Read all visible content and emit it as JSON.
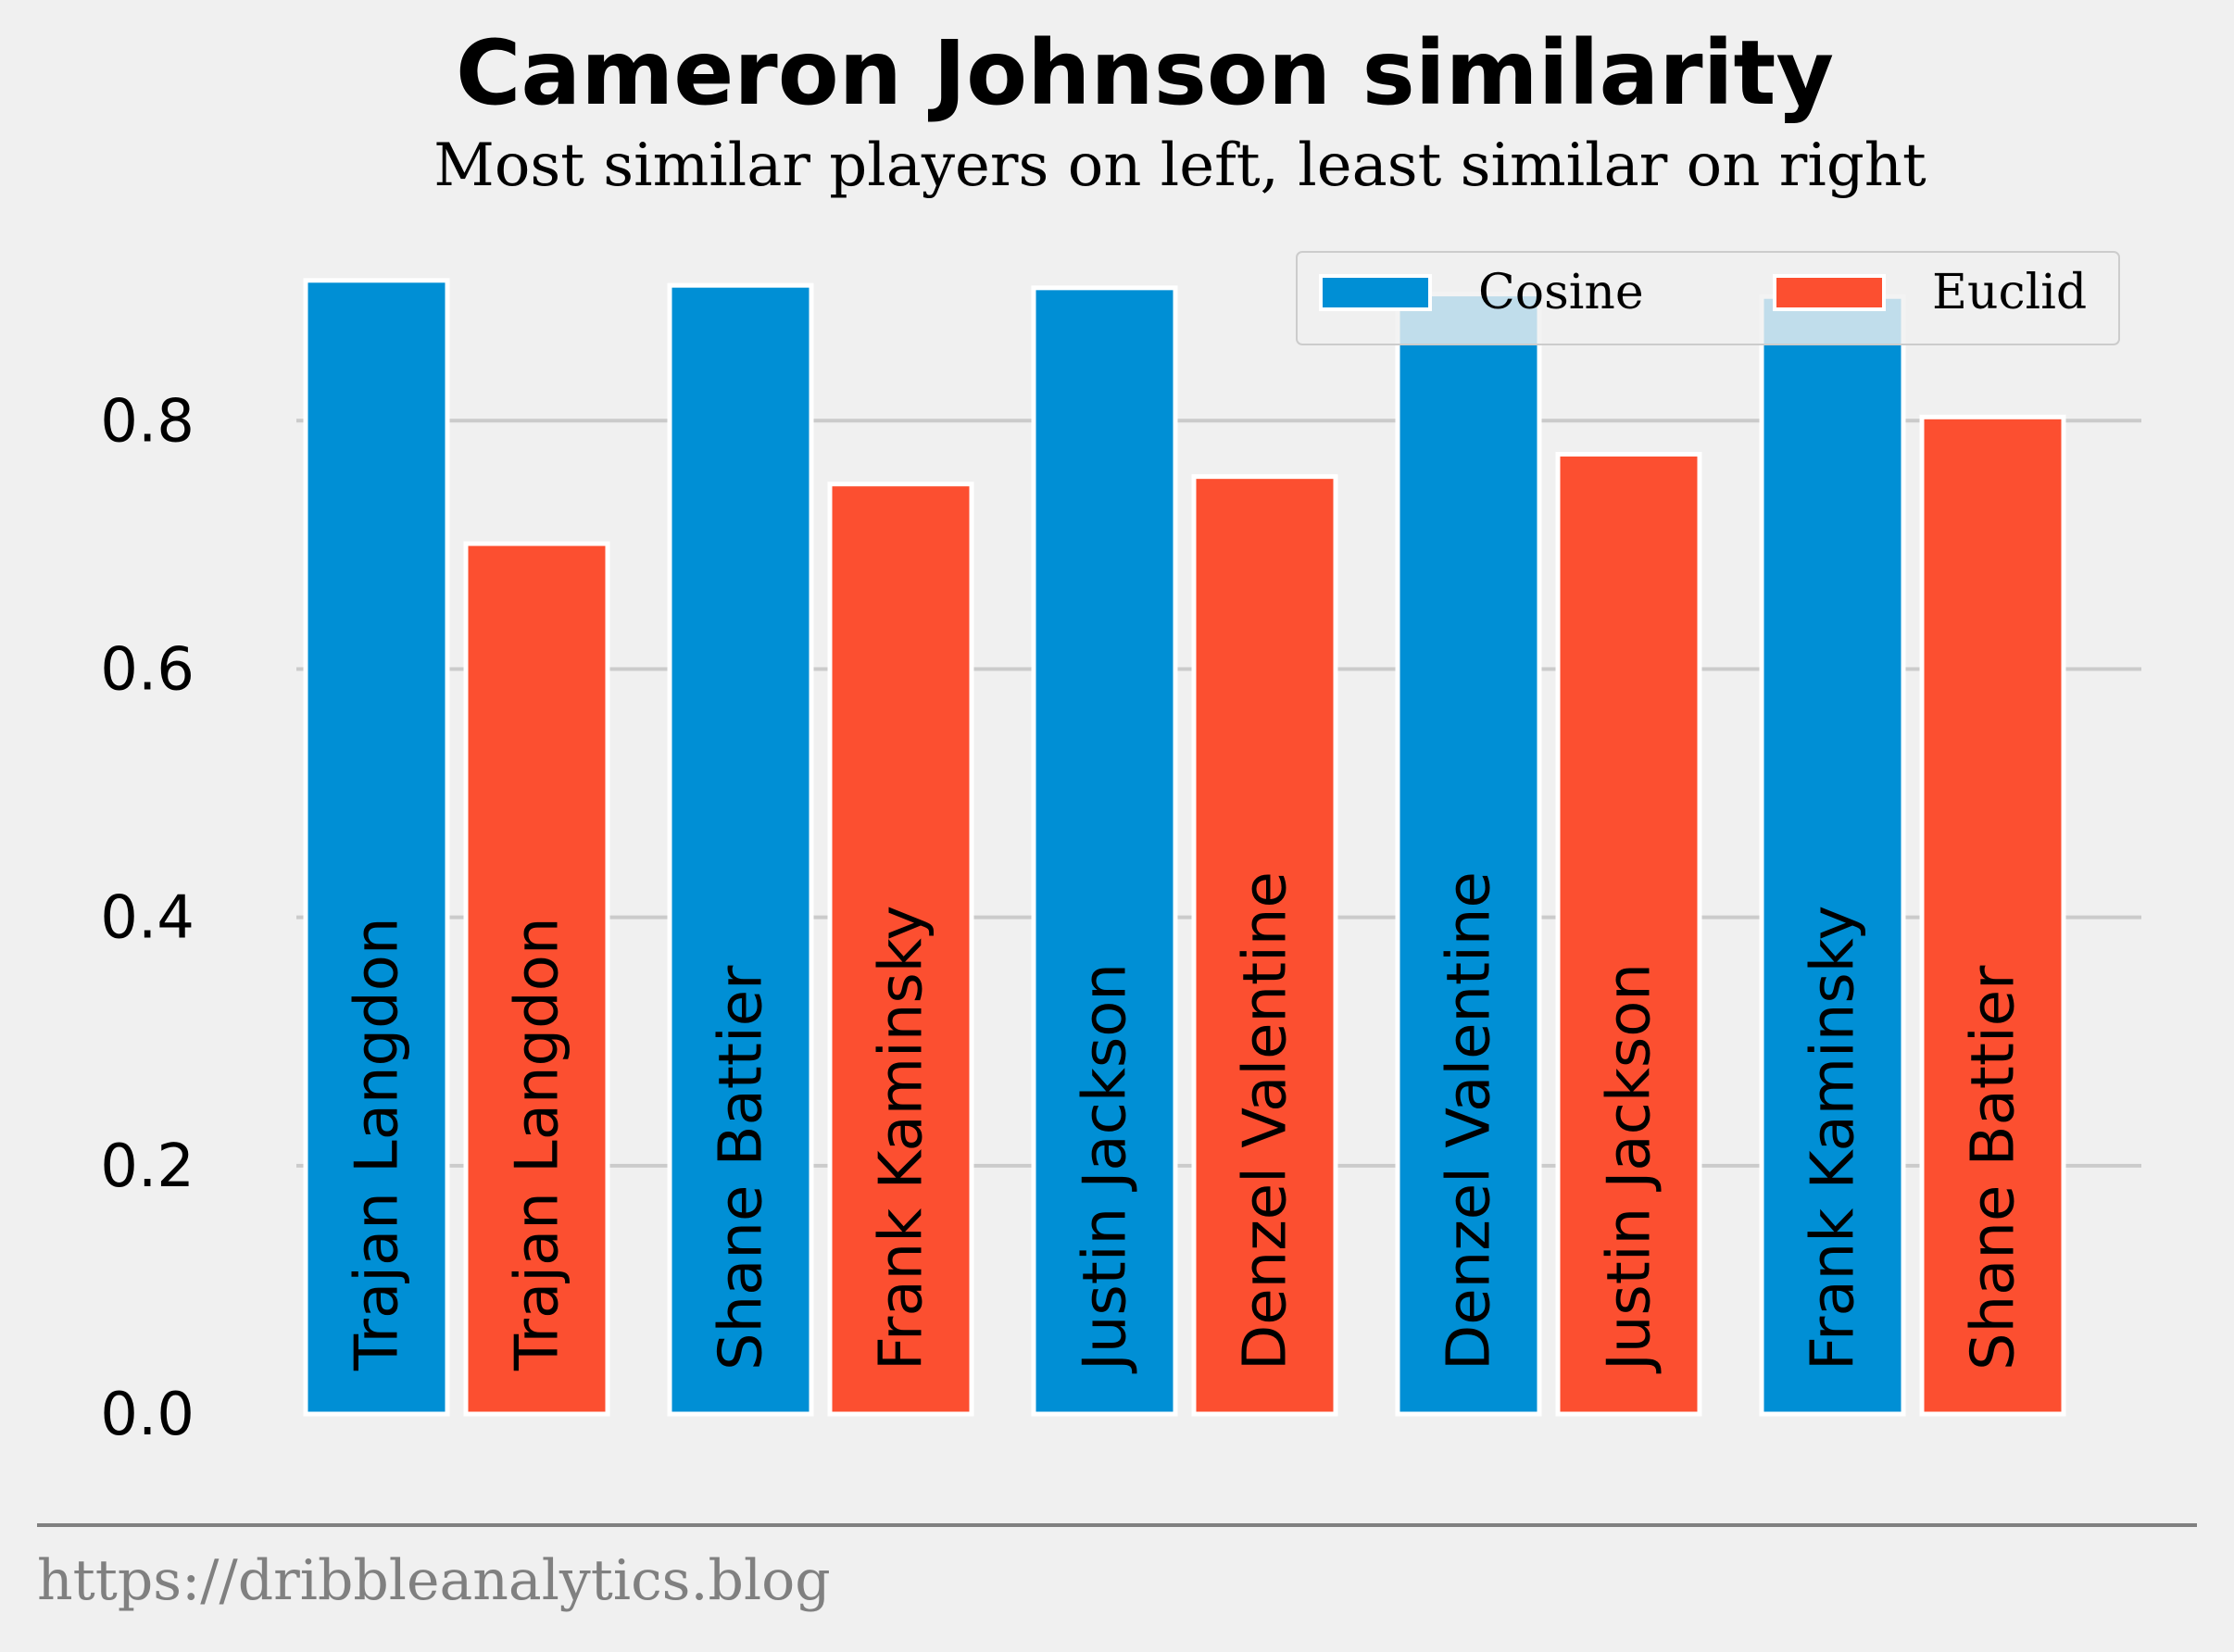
{
  "chart_data": {
    "type": "bar",
    "title": "Cameron Johnson similarity",
    "subtitle": "Most similar players on left, least similar on right",
    "ylim": [
      0,
      0.93
    ],
    "yticks": [
      0.0,
      0.2,
      0.4,
      0.6,
      0.8
    ],
    "grid": true,
    "legend_position": "top-right",
    "series": [
      {
        "name": "Cosine",
        "color": "#008fd5",
        "players": [
          "Trajan Langdon",
          "Shane Battier",
          "Justin Jackson",
          "Denzel Valentine",
          "Frank Kaminsky"
        ],
        "values": [
          0.913,
          0.909,
          0.907,
          0.902,
          0.9
        ]
      },
      {
        "name": "Euclid",
        "color": "#fc4f30",
        "players": [
          "Trajan Langdon",
          "Frank Kaminsky",
          "Denzel Valentine",
          "Justin Jackson",
          "Shane Battier"
        ],
        "values": [
          0.701,
          0.749,
          0.755,
          0.773,
          0.803
        ]
      }
    ]
  },
  "footer": "https://dribbleanalytics.blog"
}
